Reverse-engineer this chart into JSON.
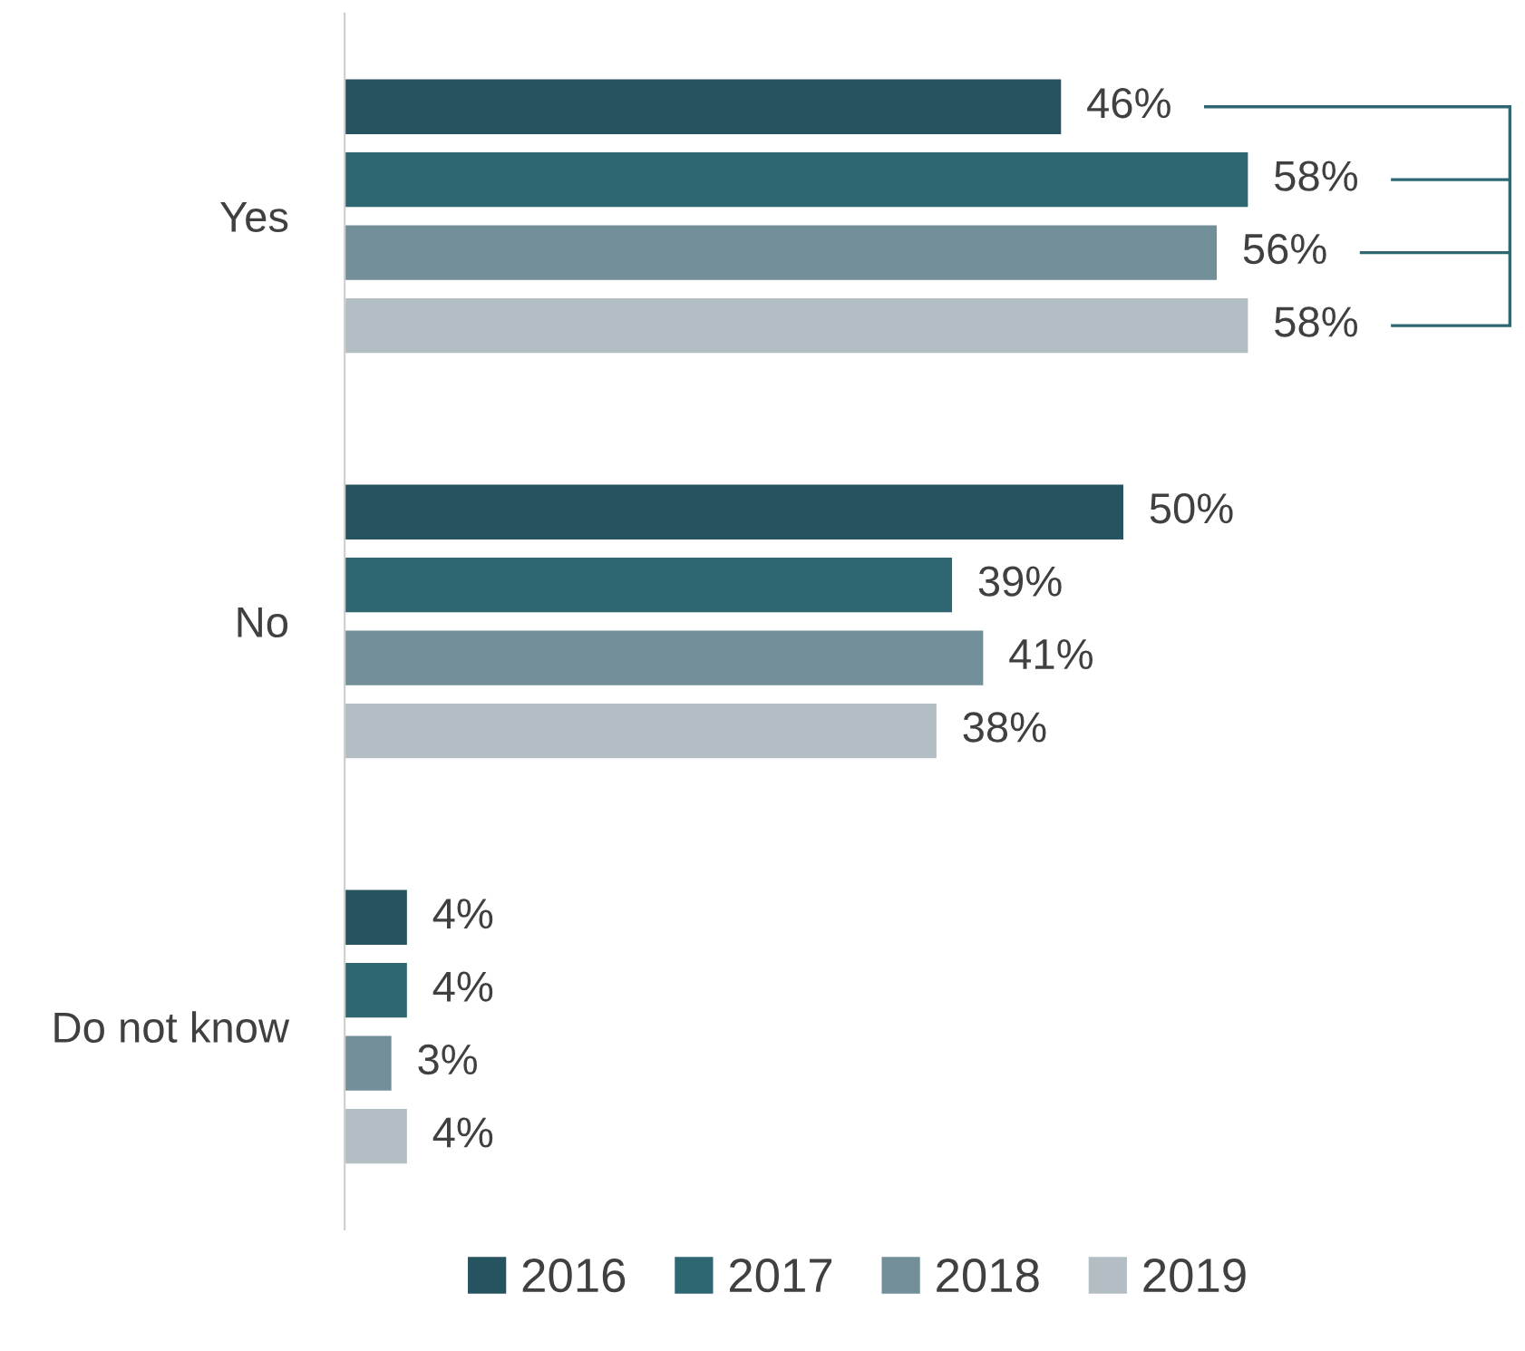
{
  "chart_data": {
    "type": "bar",
    "orientation": "horizontal",
    "categories": [
      "Yes",
      "No",
      "Do not know"
    ],
    "series": [
      {
        "name": "2016",
        "color": "#25535f",
        "values": [
          46,
          50,
          4
        ],
        "value_labels": [
          "46%",
          "50%",
          "4%"
        ]
      },
      {
        "name": "2017",
        "color": "#2e6672",
        "values": [
          58,
          39,
          4
        ],
        "value_labels": [
          "58%",
          "39%",
          "4%"
        ]
      },
      {
        "name": "2018",
        "color": "#728e98",
        "values": [
          56,
          41,
          3
        ],
        "value_labels": [
          "56%",
          "41%",
          "3%"
        ]
      },
      {
        "name": "2019",
        "color": "#b2bec4",
        "values": [
          58,
          38,
          4
        ],
        "value_labels": [
          "58%",
          "38%",
          "4%"
        ]
      }
    ],
    "grid": false,
    "legend": "bottom",
    "tick_labels": "y"
  }
}
